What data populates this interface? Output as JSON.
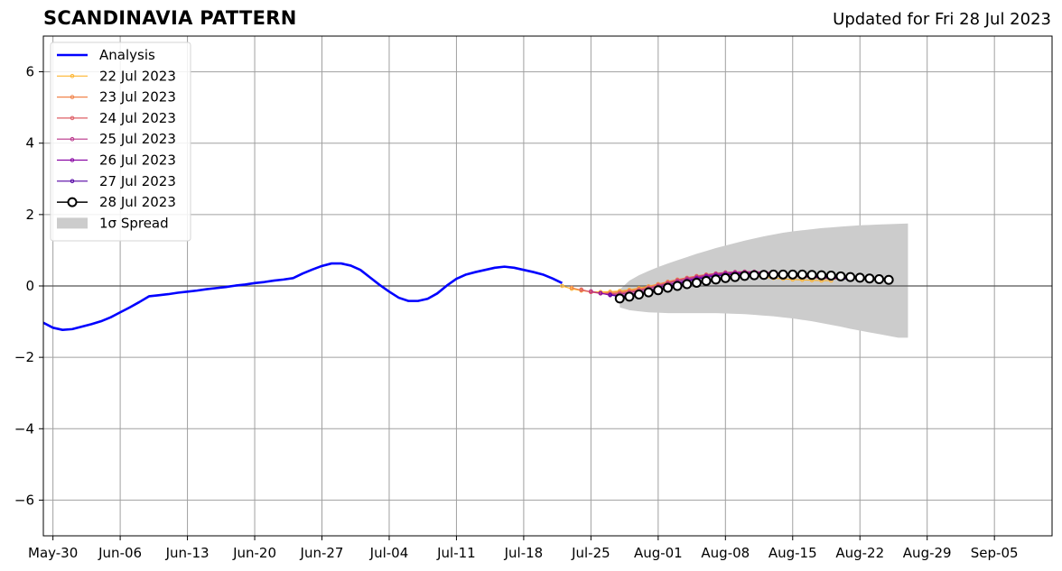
{
  "chart_data": {
    "type": "line",
    "title": "SCANDINAVIA PATTERN",
    "subtitle": "Updated for Fri 28 Jul 2023",
    "xlabel": "",
    "ylabel": "",
    "xlim": [
      "2023-05-29",
      "2023-09-11"
    ],
    "ylim": [
      -7,
      7
    ],
    "grid": true,
    "legend_position": "top-left",
    "x_ticks": [
      "May-30",
      "Jun-06",
      "Jun-13",
      "Jun-20",
      "Jun-27",
      "Jul-04",
      "Jul-11",
      "Jul-18",
      "Jul-25",
      "Aug-01",
      "Aug-08",
      "Aug-15",
      "Aug-22",
      "Aug-29",
      "Sep-05"
    ],
    "x_tick_dates": [
      "2023-05-30",
      "2023-06-06",
      "2023-06-13",
      "2023-06-20",
      "2023-06-27",
      "2023-07-04",
      "2023-07-11",
      "2023-07-18",
      "2023-07-25",
      "2023-08-01",
      "2023-08-08",
      "2023-08-15",
      "2023-08-22",
      "2023-08-29",
      "2023-09-05"
    ],
    "y_ticks": [
      6,
      4,
      2,
      0,
      -2,
      -4,
      -6
    ],
    "y_tick_labels": [
      "6",
      "4",
      "2",
      "0",
      "−2",
      "−4",
      "−6"
    ],
    "analysis": {
      "name": "Analysis",
      "color": "#0000ff",
      "x": [
        "2023-05-29",
        "2023-05-30",
        "2023-05-31",
        "2023-06-01",
        "2023-06-02",
        "2023-06-03",
        "2023-06-04",
        "2023-06-05",
        "2023-06-06",
        "2023-06-07",
        "2023-06-08",
        "2023-06-09",
        "2023-06-10",
        "2023-06-11",
        "2023-06-12",
        "2023-06-13",
        "2023-06-14",
        "2023-06-15",
        "2023-06-16",
        "2023-06-17",
        "2023-06-18",
        "2023-06-19",
        "2023-06-20",
        "2023-06-21",
        "2023-06-22",
        "2023-06-23",
        "2023-06-24",
        "2023-06-25",
        "2023-06-26",
        "2023-06-27",
        "2023-06-28",
        "2023-06-29",
        "2023-06-30",
        "2023-07-01",
        "2023-07-02",
        "2023-07-03",
        "2023-07-04",
        "2023-07-05",
        "2023-07-06",
        "2023-07-07",
        "2023-07-08",
        "2023-07-09",
        "2023-07-10",
        "2023-07-11",
        "2023-07-12",
        "2023-07-13",
        "2023-07-14",
        "2023-07-15",
        "2023-07-16",
        "2023-07-17",
        "2023-07-18",
        "2023-07-19",
        "2023-07-20",
        "2023-07-21",
        "2023-07-22"
      ],
      "y": [
        -1.03,
        -1.17,
        -1.23,
        -1.21,
        -1.14,
        -1.07,
        -0.99,
        -0.88,
        -0.74,
        -0.6,
        -0.45,
        -0.29,
        -0.26,
        -0.23,
        -0.19,
        -0.16,
        -0.13,
        -0.09,
        -0.06,
        -0.03,
        0.01,
        0.04,
        0.08,
        0.11,
        0.15,
        0.18,
        0.22,
        0.35,
        0.46,
        0.56,
        0.63,
        0.63,
        0.57,
        0.45,
        0.24,
        0.03,
        -0.16,
        -0.33,
        -0.42,
        -0.42,
        -0.36,
        -0.21,
        0.01,
        0.2,
        0.32,
        0.39,
        0.45,
        0.51,
        0.54,
        0.51,
        0.45,
        0.39,
        0.32,
        0.21,
        0.08
      ]
    },
    "forecasts": [
      {
        "name": "22 Jul 2023",
        "color": "#fdb42f",
        "x_start": "2023-07-22",
        "y": [
          0.0,
          -0.08,
          -0.13,
          -0.16,
          -0.17,
          -0.16,
          -0.14,
          -0.11,
          -0.06,
          -0.01,
          0.05,
          0.1,
          0.15,
          0.2,
          0.24,
          0.27,
          0.29,
          0.3,
          0.3,
          0.29,
          0.27,
          0.24,
          0.22,
          0.2,
          0.18,
          0.17,
          0.16,
          0.15,
          0.15
        ]
      },
      {
        "name": "23 Jul 2023",
        "color": "#f1844b",
        "x_start": "2023-07-23",
        "y": [
          -0.05,
          -0.12,
          -0.17,
          -0.2,
          -0.19,
          -0.17,
          -0.13,
          -0.08,
          -0.02,
          0.05,
          0.12,
          0.18,
          0.23,
          0.28,
          0.32,
          0.35,
          0.37,
          0.38,
          0.38,
          0.37,
          0.35,
          0.33,
          0.3,
          0.27,
          0.25,
          0.23,
          0.21,
          0.2,
          0.19
        ]
      },
      {
        "name": "24 Jul 2023",
        "color": "#dd5e66",
        "x_start": "2023-07-24",
        "y": [
          -0.1,
          -0.17,
          -0.21,
          -0.22,
          -0.2,
          -0.16,
          -0.11,
          -0.05,
          0.02,
          0.09,
          0.16,
          0.22,
          0.27,
          0.31,
          0.35,
          0.38,
          0.39,
          0.4,
          0.39,
          0.38,
          0.36,
          0.33,
          0.3,
          0.28,
          0.26,
          0.24,
          0.22,
          0.21,
          0.2
        ]
      },
      {
        "name": "25 Jul 2023",
        "color": "#b83289",
        "x_start": "2023-07-25",
        "y": [
          -0.15,
          -0.21,
          -0.24,
          -0.23,
          -0.19,
          -0.14,
          -0.07,
          0.0,
          0.07,
          0.14,
          0.2,
          0.25,
          0.3,
          0.34,
          0.37,
          0.39,
          0.4,
          0.4,
          0.39,
          0.37,
          0.35,
          0.33,
          0.3,
          0.28,
          0.26,
          0.24,
          0.22,
          0.21
        ]
      },
      {
        "name": "26 Jul 2023",
        "color": "#8b0aa5",
        "x_start": "2023-07-26",
        "y": [
          -0.2,
          -0.26,
          -0.27,
          -0.24,
          -0.19,
          -0.12,
          -0.05,
          0.03,
          0.1,
          0.16,
          0.22,
          0.27,
          0.31,
          0.34,
          0.36,
          0.37,
          0.37,
          0.36,
          0.35,
          0.33,
          0.31,
          0.29,
          0.27,
          0.25,
          0.23,
          0.21,
          0.2
        ]
      },
      {
        "name": "27 Jul 2023",
        "color": "#5302a3",
        "x_start": "2023-07-27",
        "y": [
          -0.25,
          -0.3,
          -0.29,
          -0.24,
          -0.17,
          -0.09,
          -0.01,
          0.06,
          0.13,
          0.19,
          0.24,
          0.28,
          0.31,
          0.33,
          0.34,
          0.34,
          0.33,
          0.32,
          0.31,
          0.29,
          0.27,
          0.25,
          0.23,
          0.22,
          0.2,
          0.19
        ]
      },
      {
        "name": "28 Jul 2023",
        "color": "#000000",
        "x_start": "2023-07-28",
        "y": [
          -0.35,
          -0.3,
          -0.24,
          -0.18,
          -0.12,
          -0.05,
          0.0,
          0.05,
          0.09,
          0.14,
          0.18,
          0.22,
          0.25,
          0.28,
          0.3,
          0.31,
          0.32,
          0.32,
          0.32,
          0.32,
          0.31,
          0.3,
          0.29,
          0.27,
          0.25,
          0.23,
          0.21,
          0.19,
          0.17
        ]
      }
    ],
    "spread": {
      "name": "1σ Spread",
      "color": "#cccccc",
      "x_start": "2023-07-28",
      "upper": [
        -0.1,
        0.15,
        0.3,
        0.42,
        0.53,
        0.63,
        0.72,
        0.81,
        0.9,
        0.98,
        1.06,
        1.13,
        1.2,
        1.27,
        1.33,
        1.39,
        1.44,
        1.49,
        1.53,
        1.56,
        1.59,
        1.62,
        1.64,
        1.66,
        1.68,
        1.7,
        1.71,
        1.72,
        1.73,
        1.74,
        1.75
      ],
      "lower": [
        -0.6,
        -0.68,
        -0.71,
        -0.74,
        -0.75,
        -0.76,
        -0.76,
        -0.76,
        -0.76,
        -0.76,
        -0.76,
        -0.77,
        -0.78,
        -0.79,
        -0.81,
        -0.83,
        -0.85,
        -0.88,
        -0.91,
        -0.95,
        -0.99,
        -1.04,
        -1.09,
        -1.14,
        -1.2,
        -1.25,
        -1.3,
        -1.35,
        -1.4,
        -1.45,
        -1.45
      ]
    },
    "legend": [
      {
        "label": "Analysis",
        "kind": "thick-line",
        "color": "#0000ff"
      },
      {
        "label": "22 Jul 2023",
        "kind": "line-marker",
        "color": "#fdb42f"
      },
      {
        "label": "23 Jul 2023",
        "kind": "line-marker",
        "color": "#f1844b"
      },
      {
        "label": "24 Jul 2023",
        "kind": "line-marker",
        "color": "#dd5e66"
      },
      {
        "label": "25 Jul 2023",
        "kind": "line-marker",
        "color": "#b83289"
      },
      {
        "label": "26 Jul 2023",
        "kind": "line-marker",
        "color": "#8b0aa5"
      },
      {
        "label": "27 Jul 2023",
        "kind": "line-marker",
        "color": "#5302a3"
      },
      {
        "label": "28 Jul 2023",
        "kind": "big-circle",
        "color": "#000000"
      },
      {
        "label": "1σ Spread",
        "kind": "patch",
        "color": "#cccccc"
      }
    ]
  }
}
